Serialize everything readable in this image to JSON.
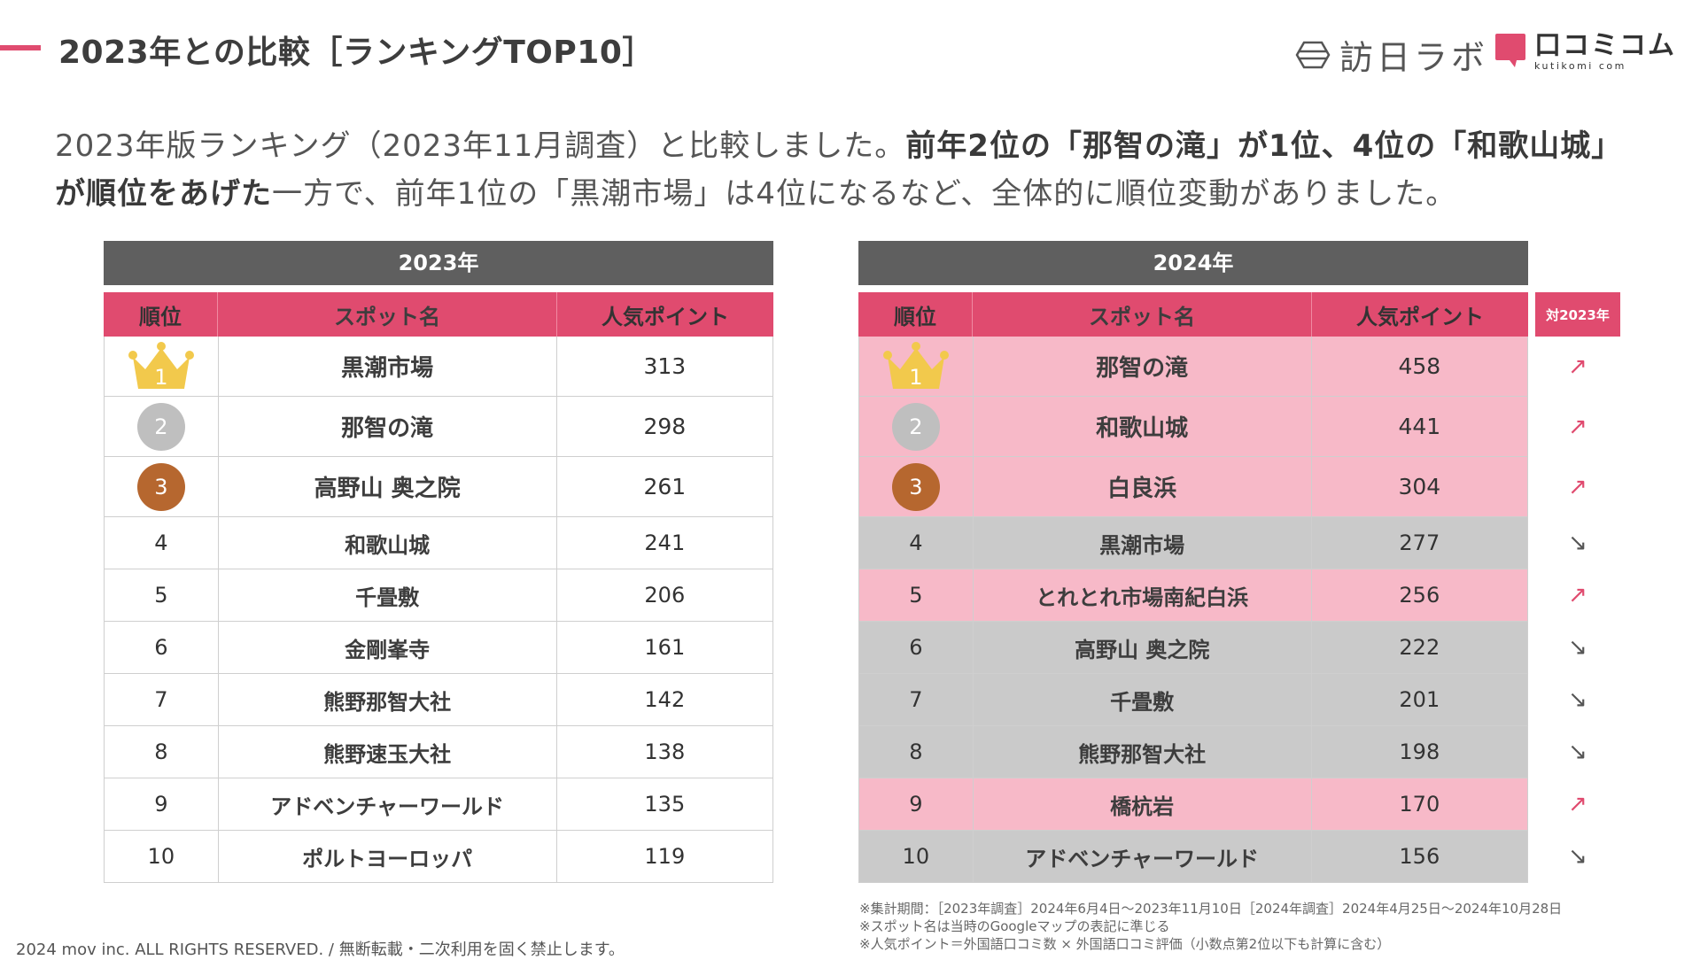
{
  "header": {
    "title": "2023年との比較［ランキングTOP10］",
    "logo1_text": "訪日ラボ",
    "logo2_text": "口コミコム",
    "logo2_sub": "kutikomi com"
  },
  "lead": {
    "part1": "2023年版ランキング（2023年11月調査）と比較しました。",
    "bold1": "前年2位の「那智の滝」が1位、4位の「和歌山城」が順位をあげた",
    "part2": "一方で、前年1位の「黒潮市場」は4位になるなど、全体的に順位変動がありました。"
  },
  "table_2023": {
    "year": "2023年",
    "headers": [
      "順位",
      "スポット名",
      "人気ポイント"
    ],
    "rows": [
      {
        "rank": "1",
        "name": "黒潮市場",
        "points": "313"
      },
      {
        "rank": "2",
        "name": "那智の滝",
        "points": "298"
      },
      {
        "rank": "3",
        "name": "高野山 奥之院",
        "points": "261"
      },
      {
        "rank": "4",
        "name": "和歌山城",
        "points": "241"
      },
      {
        "rank": "5",
        "name": "千畳敷",
        "points": "206"
      },
      {
        "rank": "6",
        "name": "金剛峯寺",
        "points": "161"
      },
      {
        "rank": "7",
        "name": "熊野那智大社",
        "points": "142"
      },
      {
        "rank": "8",
        "name": "熊野速玉大社",
        "points": "138"
      },
      {
        "rank": "9",
        "name": "アドベンチャーワールド",
        "points": "135"
      },
      {
        "rank": "10",
        "name": "ポルトヨーロッパ",
        "points": "119"
      }
    ]
  },
  "table_2024": {
    "year": "2024年",
    "headers": [
      "順位",
      "スポット名",
      "人気ポイント"
    ],
    "compare_header": "対2023年",
    "rows": [
      {
        "rank": "1",
        "name": "那智の滝",
        "points": "458",
        "trend": "↗"
      },
      {
        "rank": "2",
        "name": "和歌山城",
        "points": "441",
        "trend": "↗"
      },
      {
        "rank": "3",
        "name": "白良浜",
        "points": "304",
        "trend": "↗"
      },
      {
        "rank": "4",
        "name": "黒潮市場",
        "points": "277",
        "trend": "↘"
      },
      {
        "rank": "5",
        "name": "とれとれ市場南紀白浜",
        "points": "256",
        "trend": "↗"
      },
      {
        "rank": "6",
        "name": "高野山 奥之院",
        "points": "222",
        "trend": "↘"
      },
      {
        "rank": "7",
        "name": "千畳敷",
        "points": "201",
        "trend": "↘"
      },
      {
        "rank": "8",
        "name": "熊野那智大社",
        "points": "198",
        "trend": "↘"
      },
      {
        "rank": "9",
        "name": "橋杭岩",
        "points": "170",
        "trend": "↗"
      },
      {
        "rank": "10",
        "name": "アドベンチャーワールド",
        "points": "156",
        "trend": "↘"
      }
    ]
  },
  "colors": {
    "accent": "#e04b6f",
    "up_row": "#f7b9c8",
    "down_row": "#cacaca",
    "header_gray": "#5f5f5f"
  },
  "notes": [
    "※集計期間：［2023年調査］2024年6月4日〜2023年11月10日［2024年調査］2024年4月25日〜2024年10月28日",
    "※スポット名は当時のGoogleマップの表記に準じる",
    "※人気ポイント＝外国語口コミ数 × 外国語口コミ評価（小数点第2位以下も計算に含む）"
  ],
  "footer": {
    "copyright": "2024 mov inc. ALL RIGHTS RESERVED. / 無断転載・二次利用を固く禁止します。"
  }
}
